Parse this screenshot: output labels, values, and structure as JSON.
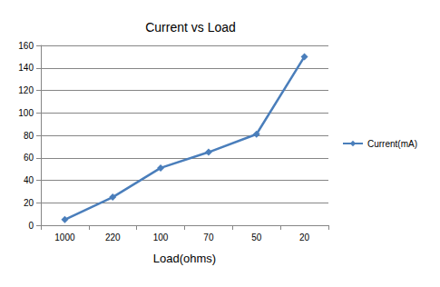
{
  "chart_data": {
    "type": "line",
    "title": "Current vs Load",
    "x_label": "Load(ohms)",
    "categories": [
      "1000",
      "220",
      "100",
      "70",
      "50",
      "20"
    ],
    "series": [
      {
        "name": "Current(mA)",
        "color": "#4a7ebb",
        "marker": "diamond",
        "values": [
          5,
          25,
          51,
          65,
          81,
          150
        ]
      }
    ],
    "ylim": [
      0,
      160
    ],
    "yticks": [
      0,
      20,
      40,
      60,
      80,
      100,
      120,
      140,
      160
    ],
    "grid": true,
    "legend": "right"
  }
}
